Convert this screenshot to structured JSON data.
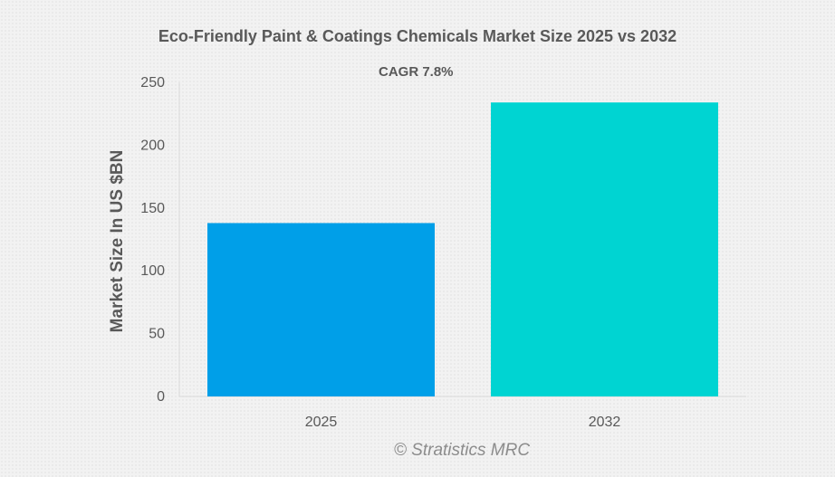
{
  "chart_data": {
    "type": "bar",
    "title": "Eco-Friendly Paint & Coatings Chemicals Market Size 2025 vs 2032",
    "subtitle": "CAGR 7.8%",
    "xlabel": "",
    "ylabel": "Market Size In US $BN",
    "categories": [
      "2025",
      "2032"
    ],
    "values": [
      138,
      234
    ],
    "ylim": [
      0,
      250
    ],
    "yticks": [
      0,
      50,
      100,
      150,
      200,
      250
    ],
    "grid": false,
    "legend": "none",
    "colors": [
      "#009fe8",
      "#00d4d2"
    ]
  },
  "watermark": "© Stratistics MRC"
}
